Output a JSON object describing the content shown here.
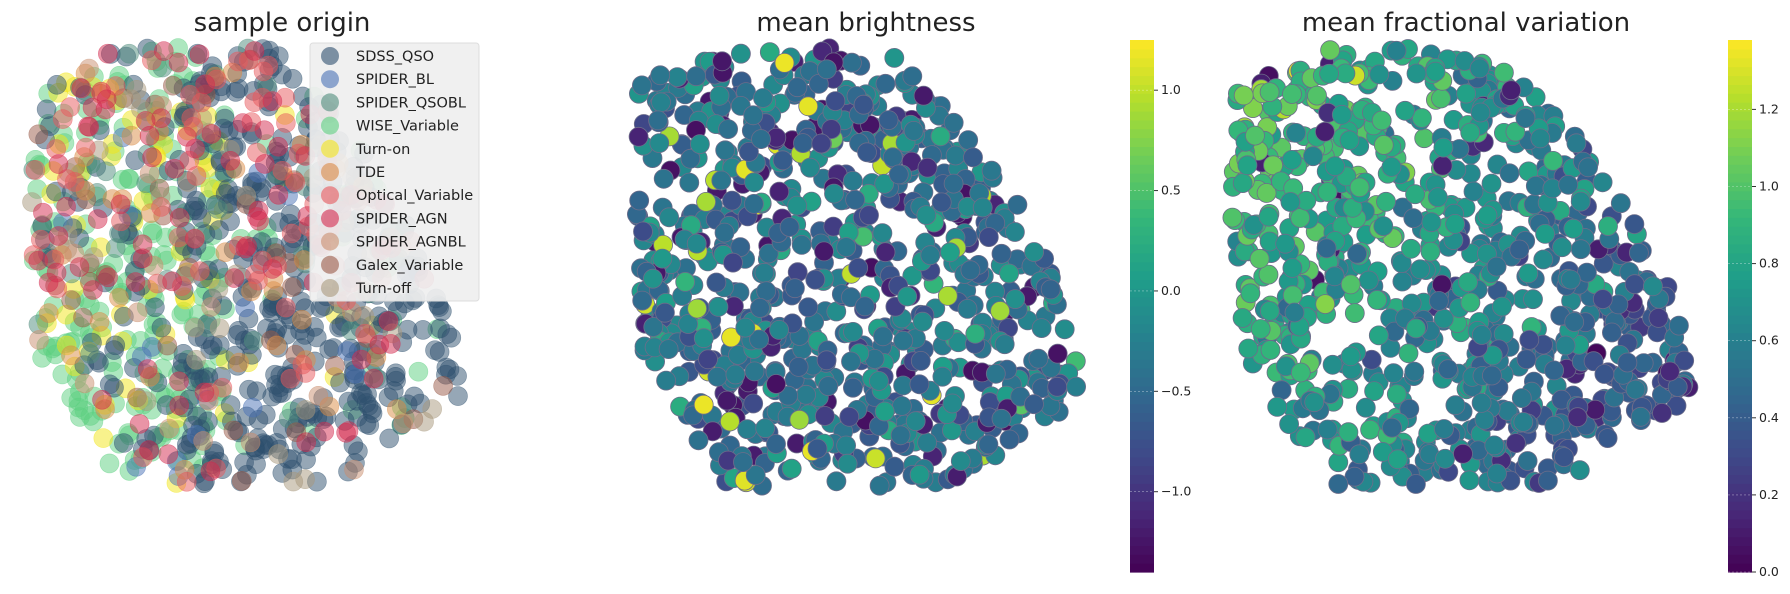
{
  "chart_data": [
    {
      "type": "scatter",
      "title": "sample origin",
      "legend_position": "top-right",
      "axes_visible": false,
      "point_count": 1100,
      "series": [
        {
          "name": "SDSS_QSO",
          "color": "#2d4f6e",
          "share": 0.4
        },
        {
          "name": "SPIDER_BL",
          "color": "#4a72b5",
          "share": 0.02
        },
        {
          "name": "SPIDER_QSOBL",
          "color": "#4e8c7b",
          "share": 0.03
        },
        {
          "name": "WISE_Variable",
          "color": "#5ccf7f",
          "share": 0.22
        },
        {
          "name": "Turn-on",
          "color": "#f2e51a",
          "share": 0.06
        },
        {
          "name": "TDE",
          "color": "#d98b44",
          "share": 0.03
        },
        {
          "name": "Optical_Variable",
          "color": "#e8575c",
          "share": 0.06
        },
        {
          "name": "SPIDER_AGN",
          "color": "#d42a4e",
          "share": 0.1
        },
        {
          "name": "SPIDER_AGNBL",
          "color": "#c98e6e",
          "share": 0.02
        },
        {
          "name": "Galex_Variable",
          "color": "#9a5a48",
          "share": 0.03
        },
        {
          "name": "Turn-off",
          "color": "#a8977c",
          "share": 0.03
        }
      ]
    },
    {
      "type": "scatter",
      "title": "mean brightness",
      "axes_visible": false,
      "colormap": "viridis",
      "point_count": 900,
      "colorbar": {
        "min": -1.4,
        "max": 1.25,
        "ticks": [
          1.0,
          0.5,
          0.0,
          -0.5,
          -1.0
        ],
        "tick_labels": [
          "1.0",
          "0.5",
          "0.0",
          "−0.5",
          "−1.0"
        ]
      }
    },
    {
      "type": "scatter",
      "title": "mean fractional variation",
      "axes_visible": false,
      "colormap": "viridis",
      "point_count": 900,
      "colorbar": {
        "min": 0.0,
        "max": 1.38,
        "ticks": [
          1.2,
          1.0,
          0.8,
          0.6,
          0.4,
          0.2,
          0.0
        ],
        "tick_labels": [
          "1.2",
          "1.0",
          "0.8",
          "0.6",
          "0.4",
          "0.2",
          "0.0"
        ]
      }
    }
  ]
}
